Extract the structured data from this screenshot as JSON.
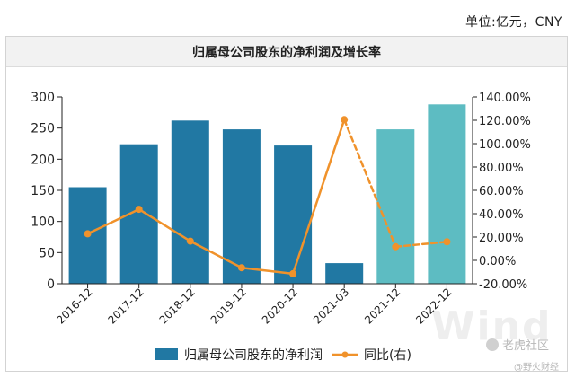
{
  "unit_label": "单位:亿元，CNY",
  "watermark": {
    "wind_text": "Wind",
    "platform_text": "老虎社区",
    "author_text": "@野火财经"
  },
  "colors": {
    "bar_actual": "#2178a3",
    "bar_forecast": "#5dbcc2",
    "line": "#f0922b",
    "axis": "#222222"
  },
  "chart_data": {
    "type": "bar",
    "title": "归属母公司股东的净利润及增长率",
    "categories": [
      "2016-12",
      "2017-12",
      "2018-12",
      "2019-12",
      "2020-12",
      "2021-03",
      "2021-12",
      "2022-12"
    ],
    "series": [
      {
        "name": "归属母公司股东的净利润",
        "type": "bar",
        "axis": "left",
        "values": [
          155,
          224,
          262,
          248,
          222,
          33,
          248,
          288
        ],
        "forecast_from_index": 6
      },
      {
        "name": "同比(右)",
        "type": "line",
        "axis": "right",
        "values": [
          22.8,
          43.8,
          16.5,
          -6.3,
          -11.5,
          120.5,
          11.7,
          15.9
        ],
        "dashed_segments": [
          [
            5,
            6
          ],
          [
            6,
            7
          ]
        ]
      }
    ],
    "y_left": {
      "ylim": [
        0,
        300
      ],
      "ticks": [
        "0",
        "50",
        "100",
        "150",
        "200",
        "250",
        "300"
      ]
    },
    "y_right": {
      "ylim": [
        -20,
        140
      ],
      "ticks": [
        "-20.00%",
        "0.00%",
        "20.00%",
        "40.00%",
        "60.00%",
        "80.00%",
        "100.00%",
        "120.00%",
        "140.00%"
      ]
    },
    "legend_position": "bottom",
    "grid": false
  }
}
